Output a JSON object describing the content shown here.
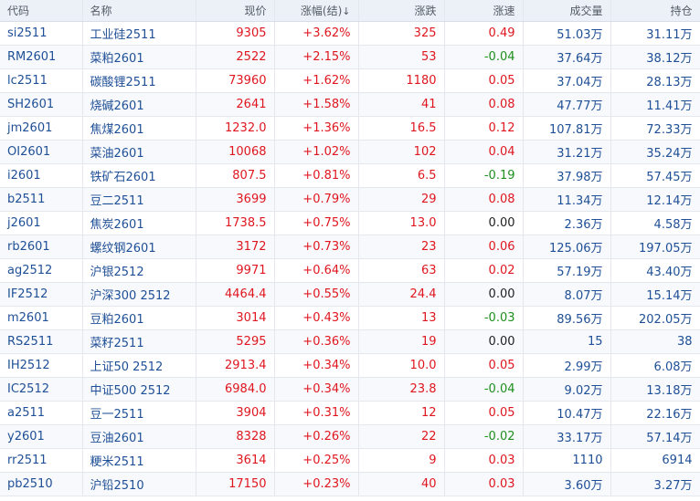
{
  "colors": {
    "up": "#e0161f",
    "down": "#1e8f1e",
    "flat": "#222222",
    "blue": "#1f4f96"
  },
  "columns": {
    "code": "代码",
    "name": "名称",
    "price": "现价",
    "change_pct": "涨幅(结)",
    "sort_icon": "↓",
    "change": "涨跌",
    "speed": "涨速",
    "volume": "成交量",
    "open_interest": "持仓"
  },
  "rows": [
    {
      "code": "si2511",
      "name": "工业硅2511",
      "price": "9305",
      "change_pct": "+3.62%",
      "change": "325",
      "speed": "0.49",
      "volume": "51.03万",
      "open_interest": "31.11万"
    },
    {
      "code": "RM2601",
      "name": "菜粕2601",
      "price": "2522",
      "change_pct": "+2.15%",
      "change": "53",
      "speed": "-0.04",
      "volume": "37.64万",
      "open_interest": "38.12万"
    },
    {
      "code": "lc2511",
      "name": "碳酸锂2511",
      "price": "73960",
      "change_pct": "+1.62%",
      "change": "1180",
      "speed": "0.05",
      "volume": "37.04万",
      "open_interest": "28.13万"
    },
    {
      "code": "SH2601",
      "name": "烧碱2601",
      "price": "2641",
      "change_pct": "+1.58%",
      "change": "41",
      "speed": "0.08",
      "volume": "47.77万",
      "open_interest": "11.41万"
    },
    {
      "code": "jm2601",
      "name": "焦煤2601",
      "price": "1232.0",
      "change_pct": "+1.36%",
      "change": "16.5",
      "speed": "0.12",
      "volume": "107.81万",
      "open_interest": "72.33万"
    },
    {
      "code": "OI2601",
      "name": "菜油2601",
      "price": "10068",
      "change_pct": "+1.02%",
      "change": "102",
      "speed": "0.04",
      "volume": "31.21万",
      "open_interest": "35.24万"
    },
    {
      "code": "i2601",
      "name": "铁矿石2601",
      "price": "807.5",
      "change_pct": "+0.81%",
      "change": "6.5",
      "speed": "-0.19",
      "volume": "37.98万",
      "open_interest": "57.45万"
    },
    {
      "code": "b2511",
      "name": "豆二2511",
      "price": "3699",
      "change_pct": "+0.79%",
      "change": "29",
      "speed": "0.08",
      "volume": "11.34万",
      "open_interest": "12.14万"
    },
    {
      "code": "j2601",
      "name": "焦炭2601",
      "price": "1738.5",
      "change_pct": "+0.75%",
      "change": "13.0",
      "speed": "0.00",
      "volume": "2.36万",
      "open_interest": "4.58万"
    },
    {
      "code": "rb2601",
      "name": "螺纹钢2601",
      "price": "3172",
      "change_pct": "+0.73%",
      "change": "23",
      "speed": "0.06",
      "volume": "125.06万",
      "open_interest": "197.05万"
    },
    {
      "code": "ag2512",
      "name": "沪银2512",
      "price": "9971",
      "change_pct": "+0.64%",
      "change": "63",
      "speed": "0.02",
      "volume": "57.19万",
      "open_interest": "43.40万"
    },
    {
      "code": "IF2512",
      "name": "沪深300 2512",
      "price": "4464.4",
      "change_pct": "+0.55%",
      "change": "24.4",
      "speed": "0.00",
      "volume": "8.07万",
      "open_interest": "15.14万"
    },
    {
      "code": "m2601",
      "name": "豆粕2601",
      "price": "3014",
      "change_pct": "+0.43%",
      "change": "13",
      "speed": "-0.03",
      "volume": "89.56万",
      "open_interest": "202.05万"
    },
    {
      "code": "RS2511",
      "name": "菜籽2511",
      "price": "5295",
      "change_pct": "+0.36%",
      "change": "19",
      "speed": "0.00",
      "volume": "15",
      "open_interest": "38"
    },
    {
      "code": "IH2512",
      "name": "上证50 2512",
      "price": "2913.4",
      "change_pct": "+0.34%",
      "change": "10.0",
      "speed": "0.05",
      "volume": "2.99万",
      "open_interest": "6.08万"
    },
    {
      "code": "IC2512",
      "name": "中证500 2512",
      "price": "6984.0",
      "change_pct": "+0.34%",
      "change": "23.8",
      "speed": "-0.04",
      "volume": "9.02万",
      "open_interest": "13.18万"
    },
    {
      "code": "a2511",
      "name": "豆一2511",
      "price": "3904",
      "change_pct": "+0.31%",
      "change": "12",
      "speed": "0.05",
      "volume": "10.47万",
      "open_interest": "22.16万"
    },
    {
      "code": "y2601",
      "name": "豆油2601",
      "price": "8328",
      "change_pct": "+0.26%",
      "change": "22",
      "speed": "-0.02",
      "volume": "33.17万",
      "open_interest": "57.14万"
    },
    {
      "code": "rr2511",
      "name": "粳米2511",
      "price": "3614",
      "change_pct": "+0.25%",
      "change": "9",
      "speed": "0.03",
      "volume": "1110",
      "open_interest": "6914"
    },
    {
      "code": "pb2510",
      "name": "沪铅2510",
      "price": "17150",
      "change_pct": "+0.23%",
      "change": "40",
      "speed": "0.03",
      "volume": "3.60万",
      "open_interest": "3.27万"
    }
  ]
}
